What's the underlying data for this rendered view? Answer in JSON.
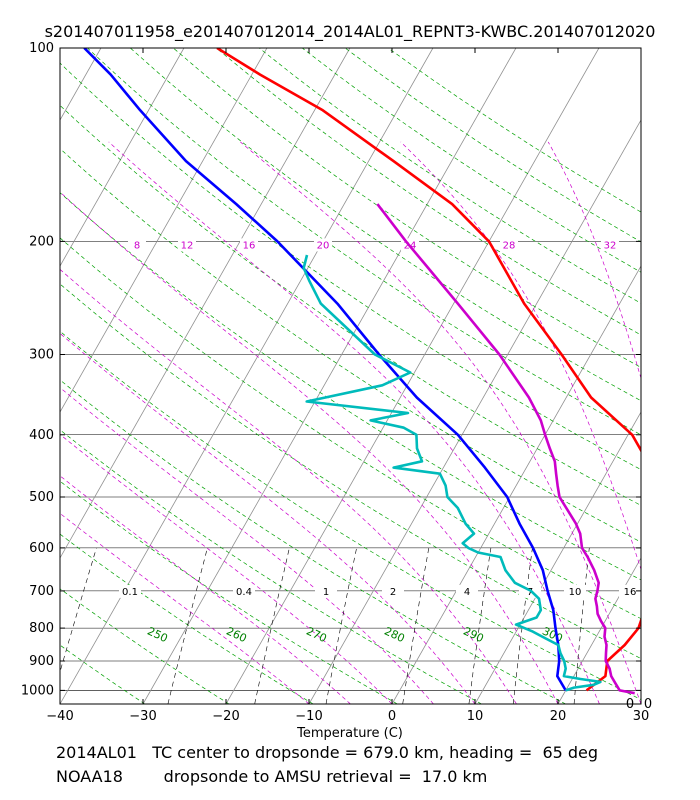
{
  "chart_data": {
    "type": "line",
    "subtype": "skew-T log-p sounding",
    "title": "s201407011958_e201407012014_2014AL01_REPNT3-KWBC.201407012020",
    "xlabel": "Temperature (C)",
    "ylabel": "",
    "xlim": [
      -40,
      30
    ],
    "ylim": [
      1050,
      100
    ],
    "x_ticks": [
      -40,
      -30,
      -20,
      -10,
      0,
      10,
      20,
      30
    ],
    "y_ticks": [
      1000,
      900,
      800,
      700,
      600,
      500,
      400,
      300,
      200,
      100
    ],
    "skew_deg_per_decade": 44,
    "isotherms_c": [
      -120,
      -110,
      -100,
      -90,
      -80,
      -70,
      -60,
      -50,
      -40,
      -30,
      -20,
      -10,
      0,
      10,
      20,
      30,
      40,
      50
    ],
    "dry_adiabats_k": [
      230,
      240,
      250,
      260,
      270,
      280,
      290,
      300,
      310,
      320,
      330,
      340,
      350,
      360,
      370,
      380,
      390,
      400,
      410,
      420,
      430,
      440
    ],
    "moist_adiabat_labels": [
      "8",
      "12",
      "16",
      "20",
      "24",
      "28",
      "32"
    ],
    "moist_adiabat_label_pressure": 200,
    "mixing_ratio_labels": [
      "0.1",
      "0.4",
      "1",
      "2",
      "4",
      "7",
      "10",
      "16"
    ],
    "mixing_ratio_label_pressure": 700,
    "adiabat_labels": [
      "250",
      "260",
      "270",
      "280",
      "290",
      "300"
    ],
    "corner_labels": [
      "0",
      "0"
    ],
    "series": [
      {
        "name": "AMSU temperature",
        "color": "#ff0000",
        "points": [
          [
            1000,
            22.5
          ],
          [
            950,
            23.8
          ],
          [
            900,
            23.0
          ],
          [
            850,
            24.0
          ],
          [
            800,
            24.5
          ],
          [
            750,
            24.0
          ],
          [
            700,
            22.8
          ],
          [
            650,
            22.0
          ],
          [
            600,
            20.5
          ],
          [
            550,
            18.8
          ],
          [
            500,
            17.5
          ],
          [
            450,
            15.0
          ],
          [
            400,
            10.5
          ],
          [
            350,
            3.0
          ],
          [
            300,
            -3.5
          ],
          [
            250,
            -11.5
          ],
          [
            200,
            -20.0
          ],
          [
            175,
            -27.0
          ],
          [
            150,
            -37.0
          ],
          [
            125,
            -49.0
          ],
          [
            110,
            -59.0
          ],
          [
            100,
            -66.0
          ]
        ]
      },
      {
        "name": "AMSU dewpoint",
        "color": "#0000ff",
        "points": [
          [
            1000,
            20.0
          ],
          [
            950,
            18.0
          ],
          [
            900,
            17.2
          ],
          [
            850,
            16.0
          ],
          [
            800,
            14.5
          ],
          [
            750,
            13.0
          ],
          [
            700,
            11.0
          ],
          [
            650,
            9.0
          ],
          [
            600,
            6.3
          ],
          [
            550,
            3.0
          ],
          [
            500,
            -0.3
          ],
          [
            450,
            -5.0
          ],
          [
            400,
            -10.5
          ],
          [
            350,
            -18.0
          ],
          [
            300,
            -25.5
          ],
          [
            250,
            -34.0
          ],
          [
            200,
            -45.5
          ],
          [
            175,
            -53.0
          ],
          [
            150,
            -62.0
          ],
          [
            125,
            -71.0
          ],
          [
            110,
            -77.0
          ],
          [
            100,
            -82.0
          ]
        ]
      },
      {
        "name": "Dropsonde temperature",
        "color": "#cc00cc",
        "points": [
          [
            1010,
            28.5
          ],
          [
            1000,
            26.5
          ],
          [
            975,
            25.5
          ],
          [
            950,
            24.5
          ],
          [
            925,
            23.8
          ],
          [
            900,
            22.8
          ],
          [
            875,
            22.3
          ],
          [
            850,
            21.8
          ],
          [
            825,
            21.0
          ],
          [
            800,
            20.5
          ],
          [
            780,
            19.5
          ],
          [
            760,
            18.6
          ],
          [
            740,
            18.0
          ],
          [
            720,
            17.3
          ],
          [
            700,
            17.0
          ],
          [
            680,
            16.6
          ],
          [
            650,
            15.2
          ],
          [
            620,
            13.5
          ],
          [
            600,
            12.2
          ],
          [
            570,
            11.0
          ],
          [
            550,
            9.8
          ],
          [
            500,
            6.0
          ],
          [
            480,
            5.0
          ],
          [
            460,
            4.0
          ],
          [
            440,
            3.0
          ],
          [
            420,
            1.5
          ],
          [
            400,
            0.0
          ],
          [
            380,
            -1.5
          ],
          [
            350,
            -4.5
          ],
          [
            300,
            -11.0
          ],
          [
            250,
            -19.5
          ],
          [
            220,
            -25.5
          ],
          [
            200,
            -30.0
          ],
          [
            185,
            -33.5
          ],
          [
            175,
            -36.0
          ]
        ]
      },
      {
        "name": "Dropsonde dewpoint",
        "color": "#00bbbb",
        "points": [
          [
            1000,
            20.0
          ],
          [
            990,
            20.8
          ],
          [
            980,
            23.0
          ],
          [
            970,
            23.6
          ],
          [
            960,
            21.0
          ],
          [
            950,
            18.8
          ],
          [
            925,
            18.5
          ],
          [
            900,
            17.8
          ],
          [
            875,
            16.8
          ],
          [
            850,
            16.0
          ],
          [
            830,
            14.0
          ],
          [
            810,
            12.0
          ],
          [
            790,
            9.5
          ],
          [
            770,
            11.5
          ],
          [
            750,
            11.5
          ],
          [
            720,
            10.5
          ],
          [
            700,
            9.0
          ],
          [
            680,
            6.5
          ],
          [
            650,
            4.5
          ],
          [
            620,
            3.0
          ],
          [
            610,
            0.0
          ],
          [
            600,
            -1.5
          ],
          [
            590,
            -2.5
          ],
          [
            570,
            -1.8
          ],
          [
            550,
            -3.5
          ],
          [
            520,
            -5.5
          ],
          [
            500,
            -7.5
          ],
          [
            480,
            -8.5
          ],
          [
            460,
            -10.0
          ],
          [
            450,
            -16.0
          ],
          [
            440,
            -13.0
          ],
          [
            420,
            -14.5
          ],
          [
            400,
            -15.5
          ],
          [
            390,
            -17.5
          ],
          [
            380,
            -22.0
          ],
          [
            370,
            -18.0
          ],
          [
            355,
            -31.0
          ],
          [
            335,
            -23.0
          ],
          [
            320,
            -20.5
          ],
          [
            300,
            -26.0
          ],
          [
            250,
            -36.0
          ],
          [
            230,
            -39.0
          ],
          [
            220,
            -40.5
          ],
          [
            210,
            -41.0
          ]
        ]
      }
    ],
    "annotation_lines": [
      "2014AL01   TC center to dropsonde = 679.0 km, heading =  65 deg",
      "NOAA18        dropsonde to AMSU retrieval =  17.0 km"
    ]
  }
}
